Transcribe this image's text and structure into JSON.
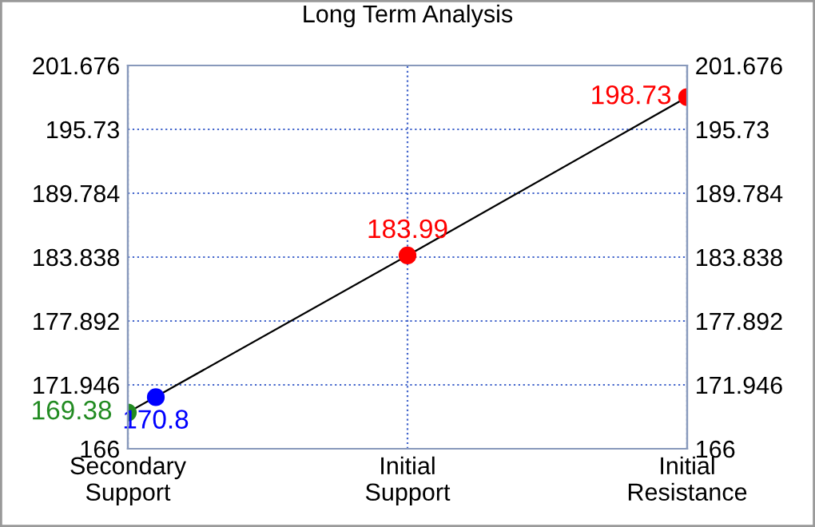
{
  "chart_data": {
    "type": "line",
    "title": "Long Term Analysis",
    "categories": [
      "Secondary\nSupport",
      "Initial\nSupport",
      "Initial\nResistance"
    ],
    "ylim": [
      166,
      201.676
    ],
    "yticks": [
      166,
      171.946,
      177.892,
      183.838,
      189.784,
      195.73,
      201.676
    ],
    "y2lim": [
      166,
      201.676
    ],
    "y2ticks": [
      166,
      171.946,
      177.892,
      183.838,
      189.784,
      195.73,
      201.676
    ],
    "series": [
      {
        "color": "#000000",
        "values": [
          169.38,
          183.99,
          198.73
        ],
        "colors": [
          "#228b22",
          "#ff0000",
          "#ff0000"
        ]
      },
      {
        "type": "scatter",
        "color": "#0000ff",
        "values": [
          170.8,
          null,
          null
        ]
      }
    ],
    "data_labels": true,
    "marker": "circle",
    "line_style": "solid",
    "grid": true
  }
}
